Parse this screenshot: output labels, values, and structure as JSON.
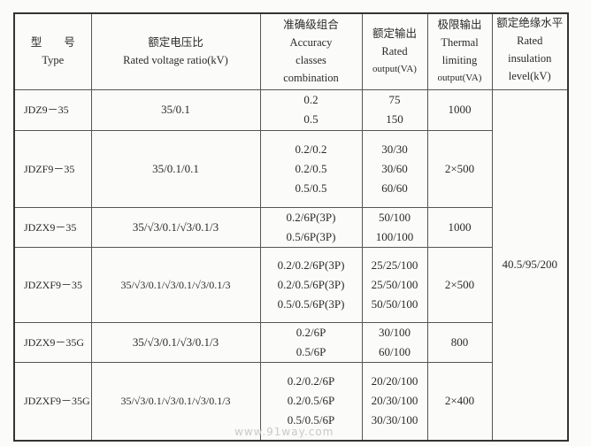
{
  "header": {
    "type": [
      "型　　号",
      "Type"
    ],
    "ratio": [
      "额定电压比",
      "Rated voltage ratio(kV)"
    ],
    "accuracy": [
      "准确级组合",
      "Accuracy",
      "classes",
      "combination"
    ],
    "rated_output": [
      "额定输出",
      "Rated",
      "output(VA)"
    ],
    "thermal": [
      "极限输出",
      "Thermal",
      "limiting",
      "output(VA)"
    ],
    "insulation": [
      "额定绝缘水平",
      "Rated",
      "insulation",
      "level(kV)"
    ]
  },
  "rows": [
    {
      "type": "JDZ9－35",
      "ratio": "35/0.1",
      "accuracy": [
        "0.2",
        "0.5"
      ],
      "output": [
        "75",
        "150"
      ],
      "thermal": "1000"
    },
    {
      "type": "JDZF9－35",
      "ratio": "35/0.1/0.1",
      "accuracy": [
        "0.2/0.2",
        "0.2/0.5",
        "0.5/0.5"
      ],
      "output": [
        "30/30",
        "30/60",
        "60/60"
      ],
      "thermal": "2×500"
    },
    {
      "type": "JDZX9－35",
      "ratio": "35/√3/0.1/√3/0.1/3",
      "accuracy": [
        "0.2/6P(3P)",
        "0.5/6P(3P)"
      ],
      "output": [
        "50/100",
        "100/100"
      ],
      "thermal": "1000"
    },
    {
      "type": "JDZXF9－35",
      "ratio": "35/√3/0.1/√3/0.1/√3/0.1/3",
      "accuracy": [
        "0.2/0.2/6P(3P)",
        "0.2/0.5/6P(3P)",
        "0.5/0.5/6P(3P)"
      ],
      "output": [
        "25/25/100",
        "25/50/100",
        "50/50/100"
      ],
      "thermal": "2×500"
    },
    {
      "type": "JDZX9－35G",
      "ratio": "35/√3/0.1/√3/0.1/3",
      "accuracy": [
        "0.2/6P",
        "0.5/6P"
      ],
      "output": [
        "30/100",
        "60/100"
      ],
      "thermal": "800"
    },
    {
      "type": "JDZXF9－35G",
      "ratio": "35/√3/0.1/√3/0.1/√3/0.1/3",
      "accuracy": [
        "0.2/0.2/6P",
        "0.2/0.5/6P",
        "0.5/0.5/6P"
      ],
      "output": [
        "20/20/100",
        "20/30/100",
        "30/30/100"
      ],
      "thermal": "2×400"
    }
  ],
  "insulation_level": "40.5/95/200",
  "watermark": "www.91way.com"
}
